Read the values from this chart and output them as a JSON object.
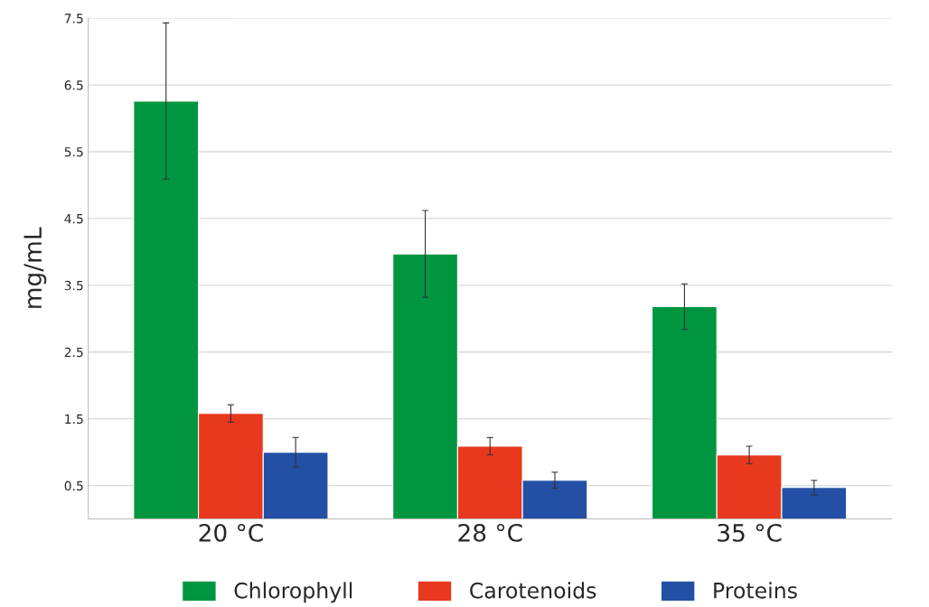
{
  "chart_data": {
    "type": "bar",
    "ylabel": "mg/mL",
    "categories": [
      "20 °C",
      "28 °C",
      "35 °C"
    ],
    "series": [
      {
        "name": "Chlorophyll",
        "color": "#00963f",
        "values": [
          6.26,
          3.97,
          3.18
        ],
        "errors": [
          1.17,
          0.65,
          0.34
        ]
      },
      {
        "name": "Carotenoids",
        "color": "#e8381e",
        "values": [
          1.58,
          1.09,
          0.96
        ],
        "errors": [
          0.13,
          0.13,
          0.13
        ]
      },
      {
        "name": "Proteins",
        "color": "#2350a5",
        "values": [
          1.0,
          0.58,
          0.47
        ],
        "errors": [
          0.22,
          0.12,
          0.11
        ]
      }
    ],
    "ylim": [
      0,
      7.5
    ],
    "yticks": [
      0.5,
      1.5,
      2.5,
      3.5,
      4.5,
      5.5,
      6.5,
      7.5
    ],
    "grid": "y",
    "legend": "bottom"
  }
}
